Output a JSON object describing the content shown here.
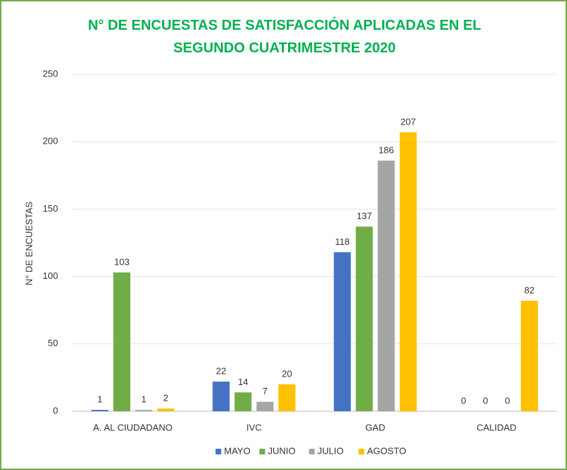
{
  "chart_data": {
    "type": "bar",
    "title": "N° DE ENCUESTAS DE SATISFACCIÓN APLICADAS EN EL SEGUNDO CUATRIMESTRE 2020",
    "y_label": "N° DE ENCUESTAS",
    "categories": [
      "A. AL CIUDADANO",
      "IVC",
      "GAD",
      "CALIDAD"
    ],
    "series": [
      {
        "name": "MAYO",
        "color": "#4472c4",
        "values": [
          1,
          22,
          118,
          0
        ]
      },
      {
        "name": "JUNIO",
        "color": "#70ad47",
        "values": [
          103,
          14,
          137,
          0
        ]
      },
      {
        "name": "JULIO",
        "color": "#a5a5a5",
        "values": [
          1,
          7,
          186,
          0
        ]
      },
      {
        "name": "AGOSTO",
        "color": "#ffc000",
        "values": [
          2,
          20,
          207,
          82
        ]
      }
    ],
    "ylim": [
      0,
      250
    ],
    "yticks": [
      0,
      50,
      100,
      150,
      200,
      250
    ],
    "grid": true,
    "legend": "bottom"
  }
}
